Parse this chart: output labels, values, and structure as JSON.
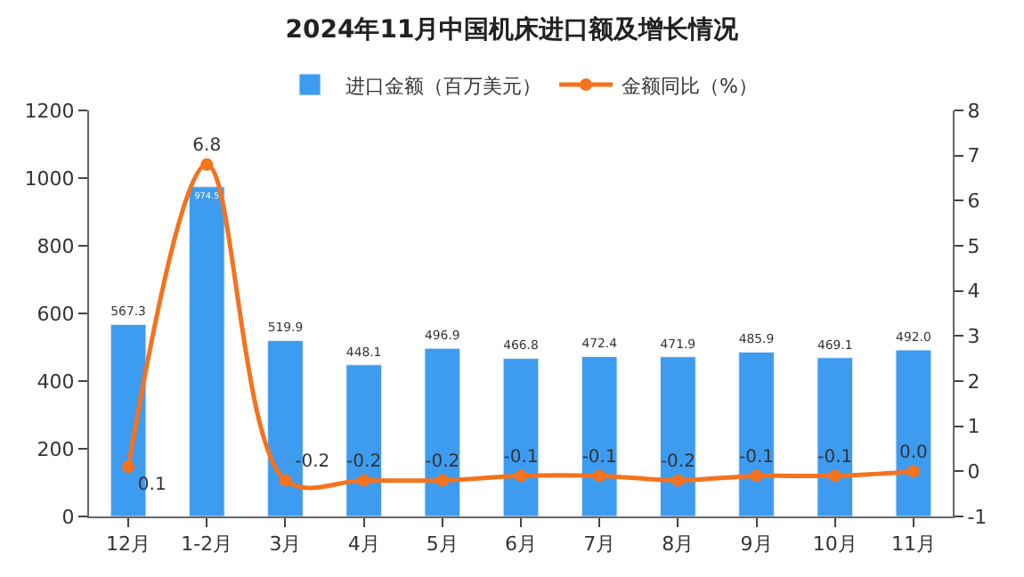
{
  "chart_data": {
    "type": "bar",
    "title": "2024年11月中国机床进口额及增长情况",
    "categories": [
      "12月",
      "1-2月",
      "3月",
      "4月",
      "5月",
      "6月",
      "7月",
      "8月",
      "9月",
      "10月",
      "11月"
    ],
    "series": [
      {
        "name": "进口金额（百万美元）",
        "color": "#3d9cf0",
        "values": [
          567.3,
          974.5,
          519.9,
          448.1,
          496.9,
          466.8,
          472.4,
          471.9,
          485.9,
          469.1,
          492.0
        ],
        "value_labels": [
          "567.3",
          "974.5",
          "519.9",
          "448.1",
          "496.9",
          "466.8",
          "472.4",
          "471.9",
          "485.9",
          "469.1",
          "492.0"
        ]
      },
      {
        "name": "金额同比（%）",
        "type": "line",
        "axis": "y2",
        "color": "#f5721f",
        "marker": "circle",
        "values": [
          0.1,
          6.8,
          -0.2,
          -0.2,
          -0.2,
          -0.1,
          -0.1,
          -0.2,
          -0.1,
          -0.1,
          0.0
        ],
        "value_labels": [
          "0.1",
          "6.8",
          "-0.2",
          "-0.2",
          "-0.2",
          "-0.1",
          "-0.1",
          "-0.2",
          "-0.1",
          "-0.1",
          "0.0"
        ]
      }
    ],
    "ylim": [
      0,
      1200
    ],
    "yticks": [
      0,
      200,
      400,
      600,
      800,
      1000,
      1200
    ],
    "y2lim": [
      -1,
      8
    ],
    "y2ticks": [
      -1,
      0,
      1,
      2,
      3,
      4,
      5,
      6,
      7,
      8
    ],
    "legend": "top"
  }
}
